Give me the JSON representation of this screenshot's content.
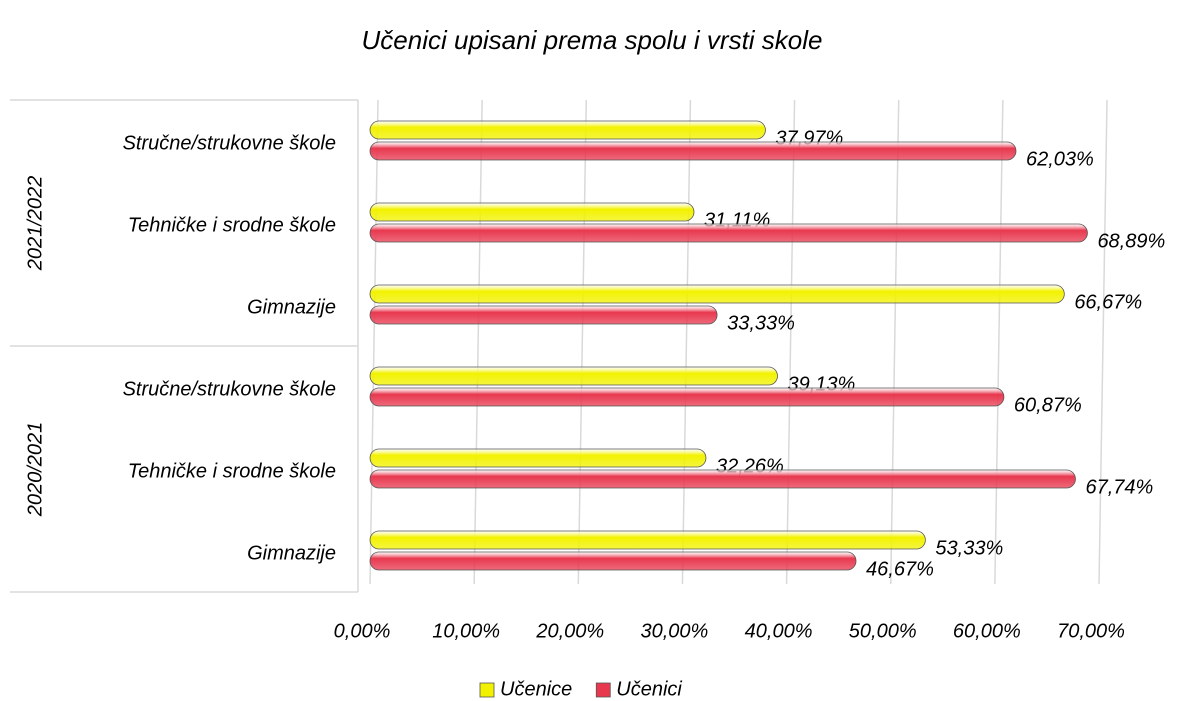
{
  "chart_data": {
    "type": "bar",
    "orientation": "horizontal",
    "title": "Učenici upisani prema spolu i vrsti skole",
    "groups": [
      {
        "name": "2021/2022",
        "categories": [
          "Stručne/strukovne škole",
          "Tehničke i srodne škole",
          "Gimnazije"
        ]
      },
      {
        "name": "2020/2021",
        "categories": [
          "Stručne/strukovne škole",
          "Tehničke i srodne škole",
          "Gimnazije"
        ]
      }
    ],
    "series": [
      {
        "name": "Učenice",
        "color": "#f2f200",
        "values": [
          37.97,
          31.11,
          66.67,
          39.13,
          32.26,
          53.33
        ],
        "value_labels": [
          "37,97%",
          "31,11%",
          "66,67%",
          "39,13%",
          "32,26%",
          "53,33%"
        ]
      },
      {
        "name": "Učenici",
        "color": "#e8384f",
        "values": [
          62.03,
          68.89,
          33.33,
          60.87,
          67.74,
          46.67
        ],
        "value_labels": [
          "62,03%",
          "68,89%",
          "33,33%",
          "60,87%",
          "67,74%",
          "46,67%"
        ]
      }
    ],
    "xlim": [
      0,
      70
    ],
    "xticks": [
      {
        "value": 0,
        "label": "0,00%"
      },
      {
        "value": 10,
        "label": "10,00%"
      },
      {
        "value": 20,
        "label": "20,00%"
      },
      {
        "value": 30,
        "label": "30,00%"
      },
      {
        "value": 40,
        "label": "40,00%"
      },
      {
        "value": 50,
        "label": "50,00%"
      },
      {
        "value": 60,
        "label": "60,00%"
      },
      {
        "value": 70,
        "label": "70,00%"
      }
    ],
    "grid": true,
    "legend": "bottom"
  }
}
